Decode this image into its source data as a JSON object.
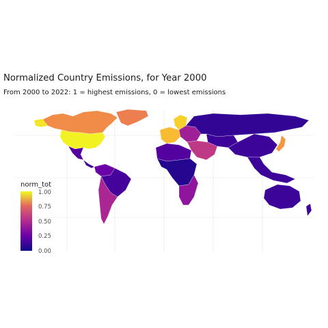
{
  "title": "Normalized Country Emissions, for Year 2000",
  "subtitle": "From 2000 to 2022: 1 = highest emissions, 0 = lowest emissions",
  "legend": {
    "title": "norm_tot",
    "ticks": [
      {
        "label": "1.00",
        "value": 1.0
      },
      {
        "label": "0.75",
        "value": 0.75
      },
      {
        "label": "0.50",
        "value": 0.5
      },
      {
        "label": "0.25",
        "value": 0.25
      },
      {
        "label": "0.00",
        "value": 0.0
      }
    ],
    "colors": [
      "#0d0887",
      "#6a00a8",
      "#b12a90",
      "#e16462",
      "#fca636",
      "#f0f921"
    ]
  },
  "map_regions": [
    {
      "name": "north-america-arctic",
      "value": 0.72
    },
    {
      "name": "greenland",
      "value": 0.68
    },
    {
      "name": "alaska",
      "value": 0.95
    },
    {
      "name": "united-states",
      "value": 0.98
    },
    {
      "name": "mexico",
      "value": 0.15
    },
    {
      "name": "central-america",
      "value": 0.1
    },
    {
      "name": "south-america-north",
      "value": 0.2
    },
    {
      "name": "brazil",
      "value": 0.12
    },
    {
      "name": "south-america-south",
      "value": 0.38
    },
    {
      "name": "europe-west",
      "value": 0.85
    },
    {
      "name": "scandinavia",
      "value": 0.9
    },
    {
      "name": "europe-east",
      "value": 0.35
    },
    {
      "name": "russia",
      "value": 0.08
    },
    {
      "name": "middle-east",
      "value": 0.45
    },
    {
      "name": "africa-north",
      "value": 0.15
    },
    {
      "name": "africa-central",
      "value": 0.05
    },
    {
      "name": "africa-south",
      "value": 0.3
    },
    {
      "name": "asia-central",
      "value": 0.1
    },
    {
      "name": "china",
      "value": 0.1
    },
    {
      "name": "japan",
      "value": 0.75
    },
    {
      "name": "southeast-asia",
      "value": 0.1
    },
    {
      "name": "australia",
      "value": 0.1
    }
  ]
}
